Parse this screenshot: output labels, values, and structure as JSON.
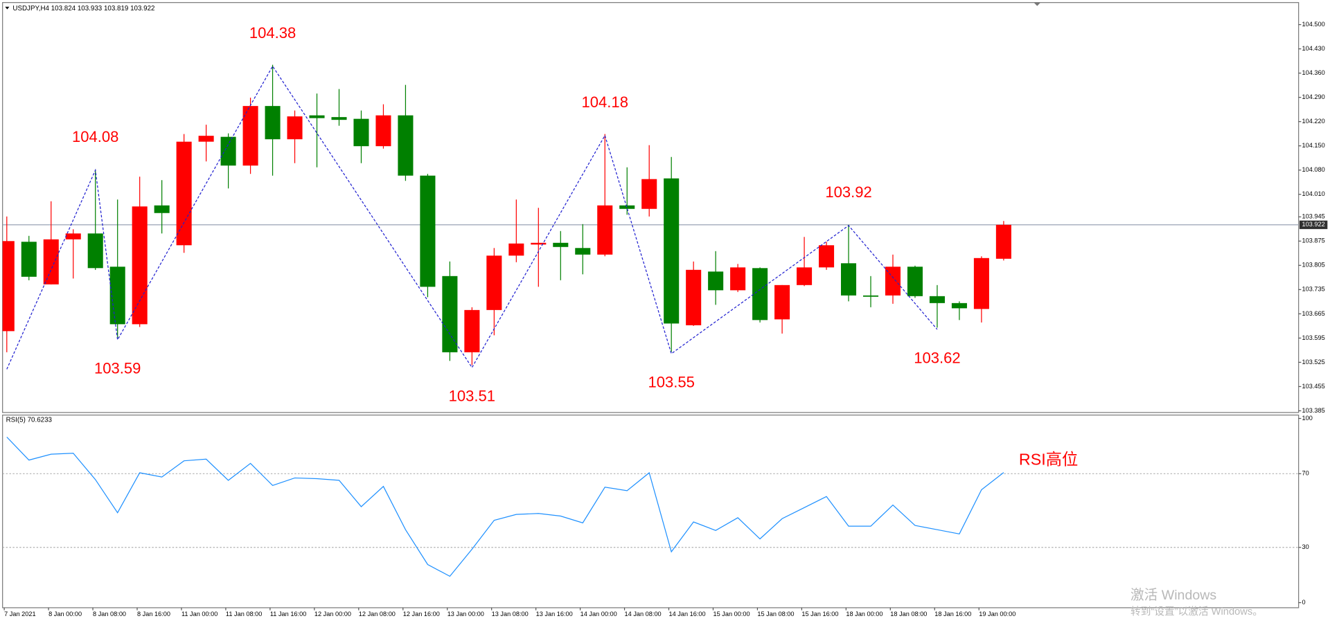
{
  "chart_data": [
    {
      "type": "candlestick",
      "title": "USDJPY,H4 103.824 103.933 103.819 103.922",
      "categories": [
        "7 Jan 2021",
        null,
        "8 Jan 00:00",
        null,
        "8 Jan 08:00",
        null,
        "8 Jan 16:00",
        null,
        "11 Jan 00:00",
        null,
        "11 Jan 08:00",
        null,
        "11 Jan 16:00",
        null,
        "12 Jan 00:00",
        null,
        "12 Jan 08:00",
        null,
        "12 Jan 16:00",
        null,
        "13 Jan 00:00",
        null,
        "13 Jan 08:00",
        null,
        "13 Jan 16:00",
        null,
        "14 Jan 00:00",
        null,
        "14 Jan 08:00",
        null,
        "14 Jan 16:00",
        null,
        "15 Jan 00:00",
        null,
        "15 Jan 08:00",
        null,
        "15 Jan 16:00",
        null,
        "18 Jan 00:00",
        null,
        "18 Jan 08:00",
        null,
        "18 Jan 16:00",
        null,
        "19 Jan 00:00",
        null
      ],
      "open": [
        103.615,
        103.873,
        103.75,
        103.88,
        103.897,
        103.801,
        103.635,
        103.978,
        103.863,
        104.162,
        104.176,
        104.093,
        104.265,
        104.169,
        104.238,
        104.233,
        104.228,
        104.149,
        104.238,
        104.064,
        103.774,
        103.554,
        103.676,
        103.833,
        103.865,
        103.87,
        103.855,
        103.836,
        103.978,
        103.968,
        104.056,
        103.632,
        103.787,
        103.733,
        103.797,
        103.649,
        103.748,
        103.799,
        103.811,
        103.718,
        103.718,
        103.801,
        103.716,
        103.696,
        103.679,
        103.824
      ],
      "high": [
        103.946,
        103.89,
        103.99,
        103.909,
        104.081,
        103.995,
        104.061,
        104.051,
        104.184,
        104.211,
        104.186,
        104.289,
        104.384,
        104.252,
        104.301,
        104.314,
        104.252,
        104.27,
        104.326,
        104.069,
        103.816,
        103.684,
        103.855,
        103.995,
        103.971,
        103.904,
        103.924,
        104.184,
        104.088,
        104.152,
        104.118,
        103.816,
        103.846,
        103.809,
        103.799,
        103.748,
        103.887,
        103.873,
        103.922,
        103.774,
        103.836,
        103.804,
        103.748,
        103.701,
        103.831,
        103.933
      ],
      "low": [
        103.554,
        103.762,
        103.75,
        103.767,
        103.792,
        103.594,
        103.627,
        103.897,
        103.841,
        104.105,
        104.027,
        104.069,
        104.064,
        104.1,
        104.088,
        104.208,
        104.1,
        104.142,
        104.049,
        103.713,
        103.529,
        103.517,
        103.603,
        103.814,
        103.743,
        103.762,
        103.779,
        103.831,
        103.951,
        103.946,
        103.555,
        103.63,
        103.691,
        103.728,
        103.64,
        103.608,
        103.745,
        103.792,
        103.701,
        103.684,
        103.694,
        103.711,
        103.625,
        103.647,
        103.64,
        103.819
      ],
      "close": [
        103.875,
        103.772,
        103.88,
        103.897,
        103.797,
        103.635,
        103.975,
        103.956,
        104.162,
        104.179,
        104.093,
        104.265,
        104.169,
        104.235,
        104.23,
        104.225,
        104.149,
        104.238,
        104.064,
        103.743,
        103.554,
        103.676,
        103.833,
        103.868,
        103.87,
        103.858,
        103.836,
        103.978,
        103.968,
        104.054,
        103.637,
        103.792,
        103.733,
        103.799,
        103.647,
        103.748,
        103.799,
        103.863,
        103.718,
        103.716,
        103.801,
        103.716,
        103.696,
        103.681,
        103.826,
        103.922
      ],
      "up_color": "#ff0000",
      "down_color": "#008000",
      "ylim": [
        103.385,
        104.5
      ],
      "yticks": [
        {
          "value": 104.5,
          "label": "104.500"
        },
        {
          "value": 104.43,
          "label": "104.430"
        },
        {
          "value": 104.36,
          "label": "104.360"
        },
        {
          "value": 104.29,
          "label": "104.290"
        },
        {
          "value": 104.22,
          "label": "104.220"
        },
        {
          "value": 104.15,
          "label": "104.150"
        },
        {
          "value": 104.08,
          "label": "104.080"
        },
        {
          "value": 104.01,
          "label": "104.010"
        },
        103.945,
        103.875,
        103.805,
        103.735,
        103.665,
        103.595,
        103.525,
        103.455,
        103.385
      ],
      "current_price": 103.922,
      "zigzag": {
        "color": "#1f1fd0",
        "label_color": "#ff0000",
        "x": [
          0,
          4,
          5,
          12,
          21,
          27,
          30,
          38,
          42
        ],
        "values": [
          103.505,
          104.08,
          103.59,
          104.38,
          103.51,
          104.18,
          103.55,
          103.92,
          103.62
        ],
        "value_labels": [
          null,
          "104.08",
          "103.59",
          "104.38",
          "103.51",
          "104.18",
          "103.55",
          "103.92",
          "103.62"
        ]
      }
    },
    {
      "type": "line",
      "title": "RSI(5) 70.6233",
      "values": [
        89.9,
        77.4,
        80.6,
        81.1,
        66.8,
        48.8,
        70.5,
        68.2,
        77.0,
        77.9,
        66.4,
        75.6,
        63.6,
        67.7,
        67.3,
        66.4,
        52.1,
        63.1,
        39.6,
        20.7,
        14.3,
        29.0,
        44.7,
        47.9,
        48.4,
        47.0,
        43.3,
        62.7,
        60.8,
        70.5,
        27.6,
        43.8,
        39.2,
        46.1,
        34.6,
        45.6,
        51.6,
        57.6,
        41.5,
        41.5,
        53.0,
        41.9,
        39.6,
        37.3,
        61.3,
        70.6233
      ],
      "color": "#1e90ff",
      "ylim": [
        0,
        100
      ],
      "yticks": [
        100,
        70,
        30,
        0
      ],
      "levels": [
        70,
        30
      ],
      "annotation": "RSI高位",
      "annotation_color": "#ff0000"
    }
  ],
  "watermark": {
    "line1": "激活 Windows",
    "line2": "转到“设置”以激活 Windows。"
  }
}
